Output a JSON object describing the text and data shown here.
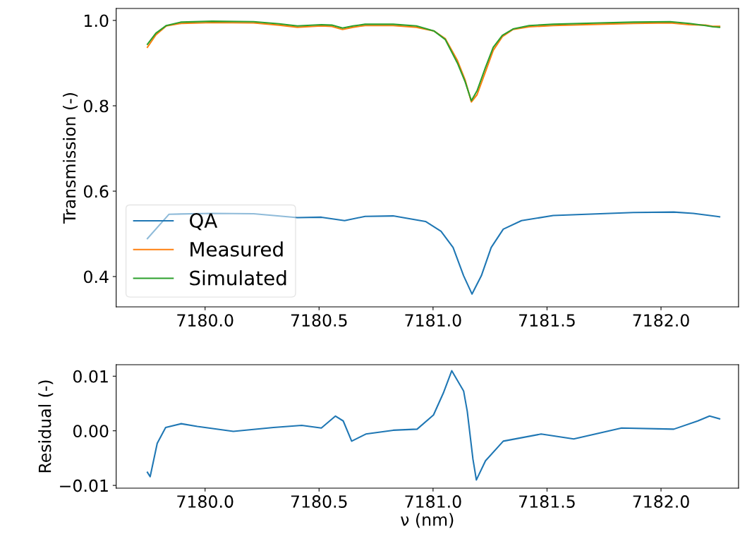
{
  "chart_data": [
    {
      "type": "line",
      "ylabel": "Transmission (-)",
      "xlim": [
        7179.61,
        7182.34
      ],
      "ylim": [
        0.329,
        1.028
      ],
      "xticks": [
        {
          "value": 7180,
          "label": "7180.0"
        },
        {
          "value": 7180.5,
          "label": "7180.5"
        },
        {
          "value": 7181,
          "label": "7181.0"
        },
        {
          "value": 7181.5,
          "label": "7181.5"
        },
        {
          "value": 7182,
          "label": "7182.0"
        }
      ],
      "yticks": [
        {
          "value": 0.4,
          "label": "0.4"
        },
        {
          "value": 0.6,
          "label": "0.6"
        },
        {
          "value": 0.8,
          "label": "0.8"
        },
        {
          "value": 1,
          "label": "1.0"
        }
      ],
      "legend": "bottom left",
      "grid": false,
      "series": [
        {
          "name": "QA",
          "color": "#1f77b4",
          "x": [
            7179.747,
            7179.842,
            7180.031,
            7180.213,
            7180.405,
            7180.51,
            7180.612,
            7180.702,
            7180.825,
            7180.967,
            7181.035,
            7181.088,
            7181.134,
            7181.171,
            7181.212,
            7181.255,
            7181.308,
            7181.388,
            7181.527,
            7181.879,
            7182.056,
            7182.142,
            7182.257
          ],
          "values": [
            0.489,
            0.546,
            0.548,
            0.547,
            0.538,
            0.539,
            0.531,
            0.541,
            0.542,
            0.529,
            0.506,
            0.468,
            0.402,
            0.359,
            0.402,
            0.468,
            0.511,
            0.531,
            0.543,
            0.55,
            0.551,
            0.548,
            0.54
          ]
        },
        {
          "name": "Measured",
          "color": "#ff7f0e",
          "x": [
            7179.747,
            7179.784,
            7179.83,
            7179.895,
            7180.031,
            7180.213,
            7180.325,
            7180.405,
            7180.51,
            7180.556,
            7180.603,
            7180.649,
            7180.702,
            7180.825,
            7180.927,
            7181.005,
            7181.054,
            7181.107,
            7181.141,
            7181.168,
            7181.193,
            7181.23,
            7181.264,
            7181.304,
            7181.351,
            7181.422,
            7181.527,
            7181.731,
            7181.879,
            7182.04,
            7182.124,
            7182.195,
            7182.229,
            7182.257
          ],
          "values": [
            0.937,
            0.966,
            0.987,
            0.993,
            0.995,
            0.994,
            0.989,
            0.984,
            0.987,
            0.986,
            0.979,
            0.984,
            0.988,
            0.988,
            0.984,
            0.975,
            0.957,
            0.906,
            0.86,
            0.809,
            0.826,
            0.88,
            0.93,
            0.962,
            0.979,
            0.985,
            0.988,
            0.991,
            0.993,
            0.994,
            0.99,
            0.989,
            0.986,
            0.986
          ]
        },
        {
          "name": "Simulated",
          "color": "#2ca02c",
          "x": [
            7179.747,
            7179.784,
            7179.83,
            7179.895,
            7180.031,
            7180.213,
            7180.325,
            7180.405,
            7180.51,
            7180.556,
            7180.603,
            7180.649,
            7180.702,
            7180.825,
            7180.927,
            7181.005,
            7181.054,
            7181.107,
            7181.141,
            7181.168,
            7181.193,
            7181.23,
            7181.264,
            7181.304,
            7181.351,
            7181.422,
            7181.527,
            7181.731,
            7181.879,
            7182.04,
            7182.124,
            7182.195,
            7182.229,
            7182.257
          ],
          "values": [
            0.944,
            0.97,
            0.988,
            0.996,
            0.998,
            0.997,
            0.992,
            0.987,
            0.99,
            0.989,
            0.982,
            0.987,
            0.991,
            0.991,
            0.987,
            0.975,
            0.955,
            0.9,
            0.856,
            0.812,
            0.835,
            0.89,
            0.937,
            0.965,
            0.98,
            0.988,
            0.991,
            0.994,
            0.996,
            0.997,
            0.993,
            0.988,
            0.985,
            0.984
          ]
        }
      ]
    },
    {
      "type": "line",
      "xlabel": "ν (nm)",
      "ylabel": "Residual (-)",
      "xlim": [
        7179.61,
        7182.34
      ],
      "ylim": [
        -0.0105,
        0.0121
      ],
      "xticks": [
        {
          "value": 7180,
          "label": "7180.0"
        },
        {
          "value": 7180.5,
          "label": "7180.5"
        },
        {
          "value": 7181,
          "label": "7181.0"
        },
        {
          "value": 7181.5,
          "label": "7181.5"
        },
        {
          "value": 7182,
          "label": "7182.0"
        }
      ],
      "yticks": [
        {
          "value": -0.01,
          "label": "−0.01"
        },
        {
          "value": 0.0,
          "label": "0.00"
        },
        {
          "value": 0.01,
          "label": "0.01"
        }
      ],
      "grid": false,
      "series": [
        {
          "color": "#1f77b4",
          "x": [
            7179.747,
            7179.759,
            7179.79,
            7179.827,
            7179.895,
            7179.966,
            7180.124,
            7180.3,
            7180.424,
            7180.51,
            7180.572,
            7180.606,
            7180.643,
            7180.705,
            7180.825,
            7180.93,
            7181.002,
            7181.045,
            7181.082,
            7181.134,
            7181.15,
            7181.175,
            7181.19,
            7181.23,
            7181.308,
            7181.474,
            7181.617,
            7181.827,
            7182.056,
            7182.161,
            7182.213,
            7182.257
          ],
          "values": [
            -0.0076,
            -0.0084,
            -0.0023,
            0.0006,
            0.0013,
            0.0008,
            -0.0001,
            0.0006,
            0.001,
            0.0005,
            0.0027,
            0.0018,
            -0.0019,
            -0.0006,
            0.0001,
            0.0003,
            0.0029,
            0.0069,
            0.011,
            0.0073,
            0.0036,
            -0.0052,
            -0.009,
            -0.0055,
            -0.0019,
            -0.0006,
            -0.0015,
            0.0005,
            0.0003,
            0.0018,
            0.0027,
            0.0022
          ]
        }
      ]
    }
  ]
}
